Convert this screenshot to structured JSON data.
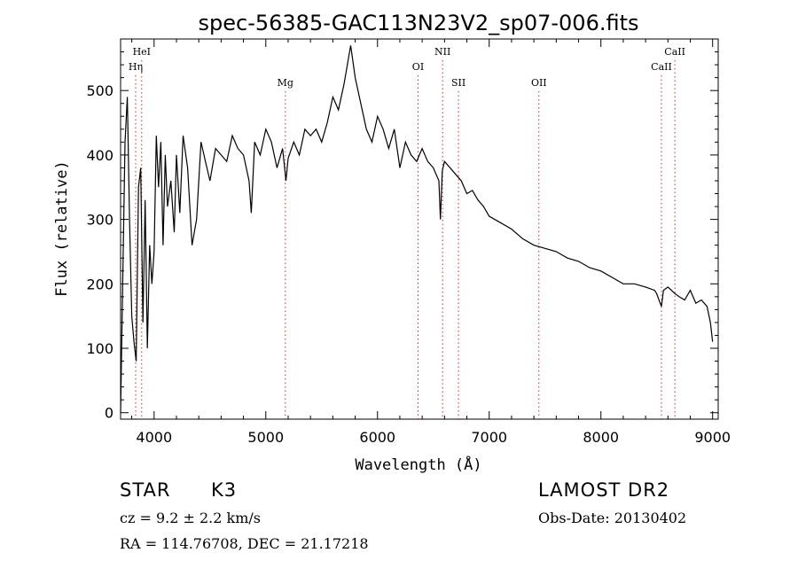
{
  "chart_data": {
    "type": "line",
    "title": "spec-56385-GAC113N23V2_sp07-006.fits",
    "xlabel": "Wavelength (Å)",
    "ylabel": "Flux (relative)",
    "xlim": [
      3700,
      9050
    ],
    "ylim": [
      -10,
      580
    ],
    "xticks": [
      4000,
      5000,
      6000,
      7000,
      8000,
      9000
    ],
    "yticks": [
      0,
      100,
      200,
      300,
      400,
      500
    ],
    "grid": false,
    "line_color": "#000000",
    "marker_color": "#d62728",
    "series": [
      {
        "x": [
          3700,
          3740,
          3760,
          3780,
          3800,
          3820,
          3840,
          3860,
          3880,
          3900,
          3920,
          3940,
          3960,
          3980,
          4000,
          4020,
          4040,
          4060,
          4080,
          4100,
          4120,
          4150,
          4180,
          4200,
          4230,
          4260,
          4300,
          4340,
          4380,
          4420,
          4460,
          4500,
          4550,
          4600,
          4650,
          4700,
          4750,
          4800,
          4850,
          4870,
          4900,
          4950,
          5000,
          5050,
          5100,
          5150,
          5180,
          5200,
          5250,
          5300,
          5350,
          5400,
          5450,
          5500,
          5550,
          5600,
          5650,
          5700,
          5720,
          5740,
          5760,
          5800,
          5850,
          5900,
          5950,
          6000,
          6050,
          6100,
          6150,
          6200,
          6250,
          6300,
          6350,
          6400,
          6450,
          6500,
          6550,
          6563,
          6580,
          6600,
          6650,
          6700,
          6750,
          6800,
          6850,
          6900,
          6950,
          7000,
          7100,
          7200,
          7300,
          7400,
          7500,
          7600,
          7700,
          7800,
          7900,
          8000,
          8100,
          8200,
          8300,
          8400,
          8480,
          8498,
          8520,
          8542,
          8560,
          8600,
          8662,
          8700,
          8750,
          8800,
          8850,
          8900,
          8950,
          8980,
          9000
        ],
        "values": [
          0,
          420,
          490,
          300,
          150,
          110,
          80,
          350,
          380,
          140,
          330,
          100,
          260,
          200,
          250,
          430,
          350,
          420,
          260,
          400,
          320,
          360,
          280,
          400,
          310,
          430,
          380,
          260,
          300,
          420,
          390,
          360,
          410,
          400,
          390,
          430,
          410,
          400,
          360,
          310,
          420,
          400,
          440,
          420,
          380,
          410,
          360,
          395,
          420,
          400,
          440,
          430,
          440,
          420,
          450,
          490,
          470,
          510,
          530,
          550,
          570,
          520,
          480,
          440,
          420,
          460,
          440,
          410,
          440,
          380,
          420,
          400,
          390,
          410,
          390,
          380,
          360,
          300,
          375,
          390,
          380,
          370,
          360,
          340,
          345,
          330,
          320,
          305,
          295,
          285,
          270,
          260,
          255,
          250,
          240,
          235,
          225,
          220,
          210,
          200,
          200,
          195,
          190,
          185,
          175,
          165,
          190,
          195,
          185,
          180,
          175,
          190,
          170,
          175,
          165,
          140,
          110
        ]
      }
    ],
    "lines": [
      {
        "label": "HeI",
        "x": 3889,
        "row": 1
      },
      {
        "label": "Hη",
        "x": 3835,
        "row": 2
      },
      {
        "label": "Mg",
        "x": 5175,
        "row": 3
      },
      {
        "label": "OI",
        "x": 6363,
        "row": 2
      },
      {
        "label": "NII",
        "x": 6583,
        "row": 1
      },
      {
        "label": "SII",
        "x": 6725,
        "row": 3
      },
      {
        "label": "OII",
        "x": 7445,
        "row": 3
      },
      {
        "label": "CaII",
        "x": 8542,
        "row": 2
      },
      {
        "label": "CaII",
        "x": 8662,
        "row": 1
      }
    ]
  },
  "info": {
    "object_type": "STAR",
    "subclass": "K3",
    "cz": "cz = 9.2 ± 2.2 km/s",
    "coords": "RA = 114.76708, DEC =  21.17218",
    "survey": "LAMOST DR2",
    "obs_date": "Obs-Date: 20130402"
  }
}
